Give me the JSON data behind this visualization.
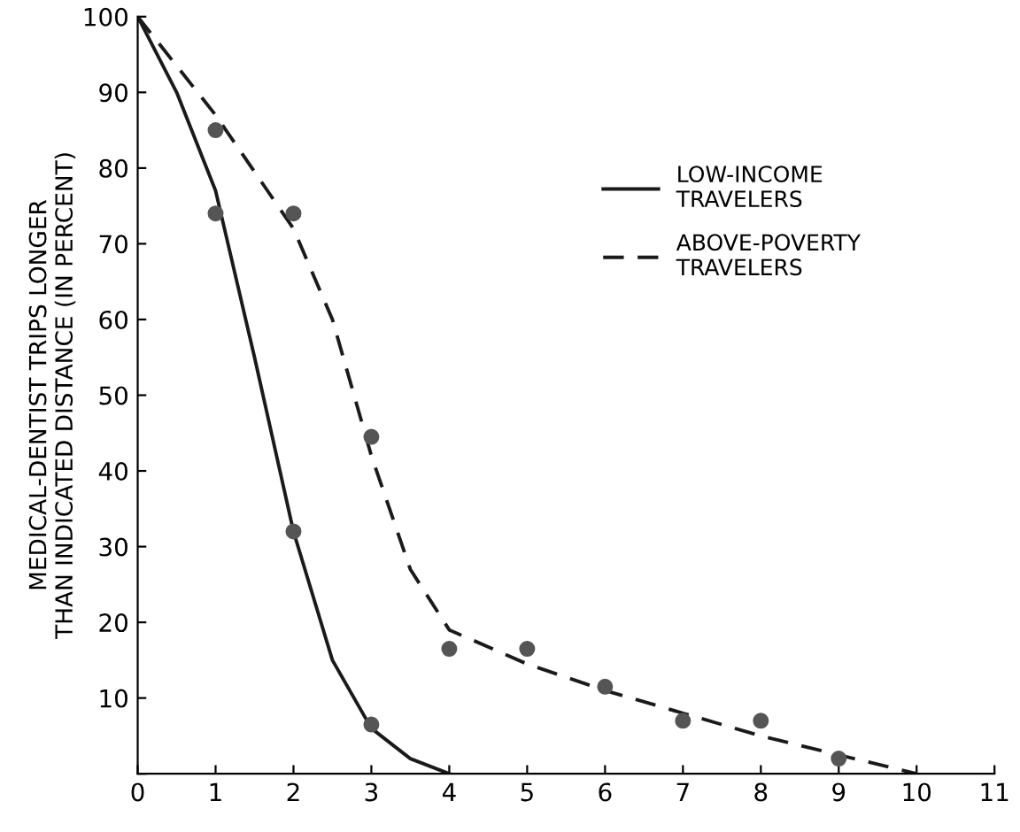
{
  "chart_data": {
    "type": "line",
    "ylabel": "MEDICAL-DENTIST TRIPS LONGER\nTHAN INDICATED DISTANCE (IN PERCENT)",
    "xlim": [
      0,
      11
    ],
    "xticks": [
      0,
      1,
      2,
      3,
      4,
      5,
      6,
      7,
      8,
      9,
      10,
      11
    ],
    "ylim": [
      0,
      100
    ],
    "yticks": [
      {
        "value": 0,
        "label": null
      },
      10,
      20,
      30,
      40,
      50,
      60,
      70,
      80,
      90,
      100
    ],
    "grid": false,
    "legend": "top right",
    "series": [
      {
        "name": "LOW-INCOME\nTRAVELERS",
        "line_style": "solid",
        "marker": "none",
        "color": "#1a1a1a",
        "x": [
          0,
          0.5,
          1,
          1.5,
          2,
          2.5,
          3,
          3.5,
          4
        ],
        "values": [
          100,
          90,
          77,
          55,
          32,
          15,
          6,
          2,
          0
        ]
      },
      {
        "name": "ABOVE-POVERTY\nTRAVELERS",
        "line_style": "dashed",
        "marker": "none",
        "color": "#1a1a1a",
        "x": [
          0,
          1,
          2,
          2.5,
          3,
          3.5,
          4,
          5,
          6,
          7,
          8,
          9,
          10
        ],
        "values": [
          100,
          87,
          72,
          60,
          42,
          27,
          19,
          14.5,
          11,
          8,
          5,
          2.5,
          0
        ]
      },
      {
        "type": "scatter",
        "marker": "circle",
        "color": "#555555",
        "x": [
          1,
          2,
          3
        ],
        "values": [
          74,
          32,
          6.5
        ]
      },
      {
        "type": "scatter",
        "marker": "circle",
        "color": "#555555",
        "x": [
          1,
          2,
          3,
          4,
          5,
          6,
          7,
          8,
          9
        ],
        "values": [
          85,
          74,
          44.5,
          16.5,
          16.5,
          11.5,
          7,
          7,
          2
        ]
      }
    ]
  }
}
